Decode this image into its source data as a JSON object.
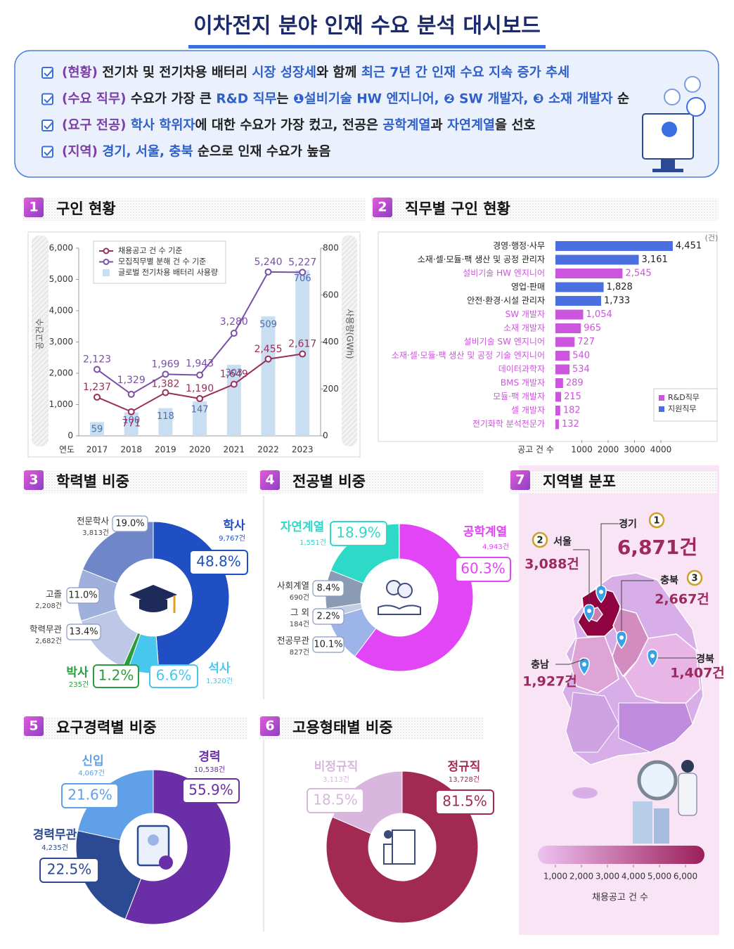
{
  "header": {
    "title": "이차전지 분야 인재 수요 분석 대시보드"
  },
  "summary": [
    {
      "segments": [
        {
          "text": "(현황)",
          "color": "#7b3fa6"
        },
        {
          "text": " 전기차 및 전기차용 배터리 "
        },
        {
          "text": "시장 성장세",
          "color": "#2f5fc8"
        },
        {
          "text": "와 함께 "
        },
        {
          "text": "최근 7년 간 인재 수요 지속 증가 추세",
          "color": "#2f5fc8"
        }
      ]
    },
    {
      "segments": [
        {
          "text": "(수요 직무)",
          "color": "#7b3fa6"
        },
        {
          "text": " 수요가 가장 큰 "
        },
        {
          "text": "R&D 직무",
          "color": "#2f5fc8"
        },
        {
          "text": "는 "
        },
        {
          "text": "❶설비기술 HW 엔지니어, ❷ SW 개발자, ❸ 소재 개발자",
          "color": "#2f5fc8"
        },
        {
          "text": " 순"
        }
      ]
    },
    {
      "segments": [
        {
          "text": "(요구 전공)",
          "color": "#7b3fa6"
        },
        {
          "text": " "
        },
        {
          "text": "학사 학위자",
          "color": "#2f5fc8"
        },
        {
          "text": "에 대한 수요가 가장 컸고, 전공은 "
        },
        {
          "text": "공학계열",
          "color": "#2f5fc8"
        },
        {
          "text": "과 "
        },
        {
          "text": "자연계열",
          "color": "#2f5fc8"
        },
        {
          "text": "을 선호"
        }
      ]
    },
    {
      "segments": [
        {
          "text": "(지역)",
          "color": "#7b3fa6"
        },
        {
          "text": " "
        },
        {
          "text": "경기, 서울, 충북",
          "color": "#2f5fc8"
        },
        {
          "text": " 순으로 인재 수요가 높음"
        }
      ]
    }
  ],
  "chart_data": [
    {
      "type": "combo",
      "number": 1,
      "title": "구인 현황",
      "xlabel": "연도",
      "ylabel": "공고건수",
      "y2label": "사용량(GWh)",
      "categories": [
        "2017",
        "2018",
        "2019",
        "2020",
        "2021",
        "2022",
        "2023"
      ],
      "ylim": [
        0,
        6000
      ],
      "yticks": [
        0,
        {
          "value": 1000,
          "label": "1,000"
        },
        {
          "value": 2000,
          "label": "2,000"
        },
        {
          "value": 3000,
          "label": "3,000"
        },
        {
          "value": 4000,
          "label": "4,000"
        },
        {
          "value": 5000,
          "label": "5,000"
        },
        {
          "value": 6000,
          "label": "6,000"
        }
      ],
      "y2lim": [
        0,
        800
      ],
      "y2ticks": [
        0,
        200,
        400,
        600,
        800
      ],
      "series": [
        {
          "name": "채용공고 건 수 기준",
          "type": "line",
          "color": "#9b2d5a",
          "values": [
            1237,
            771,
            1382,
            1190,
            1649,
            2455,
            2617
          ],
          "value_labels": [
            "1,237",
            "771",
            "1,382",
            "1,190",
            "1,649",
            "2,455",
            "2,617"
          ]
        },
        {
          "name": "모집직무별 분해 건 수 기준",
          "type": "line",
          "color": "#7b4fa8",
          "values": [
            2123,
            1329,
            1969,
            1943,
            3280,
            5240,
            5227
          ],
          "value_labels": [
            "2,123",
            "1,329",
            "1,969",
            "1,943",
            "3,280",
            "5,240",
            "5,227"
          ]
        },
        {
          "name": "글로벌 전기차용 배터리 사용량",
          "type": "bar",
          "axis": "y2",
          "color": "#c9def0",
          "values": [
            59,
            100,
            118,
            147,
            303,
            509,
            706
          ]
        }
      ]
    },
    {
      "type": "hbar",
      "number": 2,
      "title": "직무별 구인 현황",
      "unit_label": "(건)",
      "xlabel": "공고 건 수",
      "categories": [
        "경영·행정·사무",
        "소재·셀·모듈·팩 생산 및 공정 관리자",
        "설비기술 HW 엔지니어",
        "영업·판매",
        "안전·환경·시설 관리자",
        "SW 개발자",
        "소재 개발자",
        "설비기술 SW 엔지니어",
        "소재·셀·모듈·팩 생산 및 공정 기술 엔지니어",
        "데이터과학자",
        "BMS 개발자",
        "모듈·팩 개발자",
        "셀 개발자",
        "전기화학 분석전문가"
      ],
      "xlim": [
        0,
        6000
      ],
      "xticks": [
        1000,
        2000,
        3000,
        4000
      ],
      "series": [
        {
          "name": "R&D직무",
          "color": "#cc55dd",
          "values": [
            null,
            null,
            2545,
            null,
            null,
            1054,
            965,
            727,
            540,
            534,
            289,
            215,
            182,
            132
          ],
          "value_labels": [
            null,
            null,
            "2,545",
            null,
            null,
            "1,054",
            "965",
            "727",
            "540",
            "534",
            "289",
            "215",
            "182",
            "132"
          ]
        },
        {
          "name": "지원직무",
          "color": "#4a6fe0",
          "values": [
            4451,
            3161,
            null,
            1828,
            1733,
            null,
            null,
            null,
            null,
            null,
            null,
            null,
            null,
            null
          ],
          "value_labels": [
            "4,451",
            "3,161",
            null,
            "1,828",
            "1,733",
            null,
            null,
            null,
            null,
            null,
            null,
            null,
            null,
            null
          ]
        }
      ]
    },
    {
      "type": "donut",
      "number": 3,
      "title": "학력별 비중",
      "categories": [
        "학사",
        "석사",
        "박사",
        "학력무관",
        "고졸",
        "전문학사"
      ],
      "values": [
        48.8,
        6.6,
        1.2,
        13.4,
        11.0,
        19.0
      ],
      "value_labels": [
        "48.8%",
        "6.6%",
        "1.2%",
        "13.4%",
        "11.0%",
        "19.0%"
      ],
      "counts": [
        9767,
        1320,
        235,
        2682,
        2208,
        3813
      ],
      "count_labels": [
        "9,767건",
        "1,320건",
        "235건",
        "2,682건",
        "2,208건",
        "3,813건"
      ],
      "colors": [
        "#1f4fc2",
        "#47c7ee",
        "#2a9d3a",
        "#bcc8e6",
        "#9fb0dc",
        "#6f86c9"
      ]
    },
    {
      "type": "donut",
      "number": 4,
      "title": "전공별 비중",
      "categories": [
        "공학계열",
        "전공무관",
        "그 외",
        "사회계열",
        "자연계열"
      ],
      "values": [
        60.3,
        10.1,
        2.2,
        8.4,
        18.9
      ],
      "value_labels": [
        "60.3%",
        "10.1%",
        "2.2%",
        "8.4%",
        "18.9%"
      ],
      "counts": [
        4943,
        827,
        184,
        690,
        1551
      ],
      "count_labels": [
        "4,943건",
        "827건",
        "184건",
        "690건",
        "1,551건"
      ],
      "colors": [
        "#e245f5",
        "#9db4e8",
        "#c3cde3",
        "#8b9bb3",
        "#2fd9c8"
      ]
    },
    {
      "type": "donut",
      "number": 5,
      "title": "요구경력별 비중",
      "categories": [
        "경력",
        "경력무관",
        "신입"
      ],
      "values": [
        55.9,
        22.5,
        21.6
      ],
      "value_labels": [
        "55.9%",
        "22.5%",
        "21.6%"
      ],
      "counts": [
        10538,
        4235,
        4067
      ],
      "count_labels": [
        "10,538건",
        "4,235건",
        "4,067건"
      ],
      "colors": [
        "#6a2ea6",
        "#2c4a94",
        "#5fa0e8"
      ]
    },
    {
      "type": "donut",
      "number": 6,
      "title": "고용형태별 비중",
      "categories": [
        "정규직",
        "비정규직"
      ],
      "values": [
        81.5,
        18.5
      ],
      "value_labels": [
        "81.5%",
        "18.5%"
      ],
      "counts": [
        13728,
        3113
      ],
      "count_labels": [
        "13,728건",
        "3,113건"
      ],
      "colors": [
        "#a22a52",
        "#d9b6de"
      ]
    },
    {
      "type": "map",
      "number": 7,
      "title": "지역별 분포",
      "regions": [
        "경기",
        "서울",
        "충북",
        "충남",
        "경북"
      ],
      "values": [
        6871,
        3088,
        2667,
        1927,
        1407
      ],
      "value_labels": [
        "6,871건",
        "3,088건",
        "2,667건",
        "1,927건",
        "1,407건"
      ],
      "ranks": [
        1,
        2,
        3,
        null,
        null
      ],
      "colors": [
        "#eec2f2",
        "#9c1f5a"
      ],
      "xlim": [
        1000,
        6000
      ],
      "xticks": [
        {
          "value": 1000,
          "label": "1,000"
        },
        {
          "value": 2000,
          "label": "2,000"
        },
        {
          "value": 3000,
          "label": "3,000"
        },
        {
          "value": 4000,
          "label": "4,000"
        },
        {
          "value": 5000,
          "label": "5,000"
        },
        {
          "value": 6000,
          "label": "6,000"
        }
      ],
      "xlabel": "채용공고 건 수"
    }
  ]
}
